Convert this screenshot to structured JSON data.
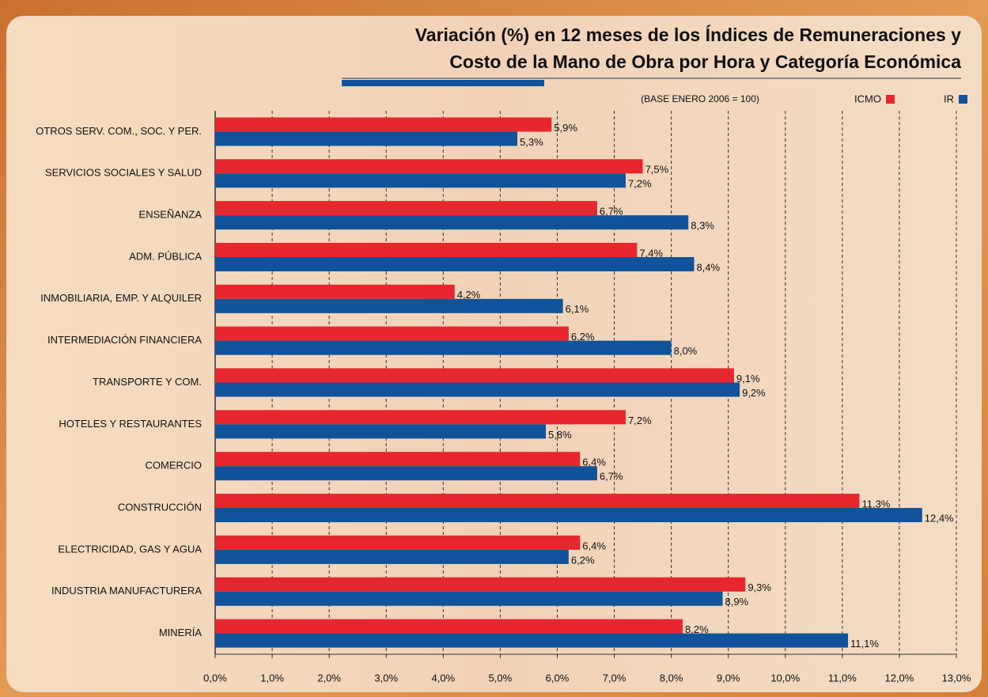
{
  "chart_data": {
    "type": "barh",
    "title": [
      "Variación (%) en 12 meses de los Índices de Remuneraciones y",
      "Costo de la Mano de Obra por Hora y Categoría Económica"
    ],
    "subtitle": "(BASE ENERO 2006 = 100)",
    "categories": [
      "OTROS SERV. COM., SOC. Y PER.",
      "SERVICIOS SOCIALES Y SALUD",
      "ENSEÑANZA",
      "ADM. PÚBLICA",
      "INMOBILIARIA, EMP. Y ALQUILER",
      "INTERMEDIACIÓN FINANCIERA",
      "TRANSPORTE Y COM.",
      "HOTELES Y RESTAURANTES",
      "COMERCIO",
      "CONSTRUCCIÓN",
      "ELECTRICIDAD, GAS Y AGUA",
      "INDUSTRIA MANUFACTURERA",
      "MINERÍA"
    ],
    "series": [
      {
        "name": "ICMO",
        "color": "#e8262e",
        "values": [
          5.9,
          7.5,
          6.7,
          7.4,
          4.2,
          6.2,
          9.1,
          7.2,
          6.4,
          11.3,
          6.4,
          9.3,
          8.2
        ],
        "value_labels": [
          "5,9%",
          "7,5%",
          "6,7%",
          "7,4%",
          "4,2%",
          "6,2%",
          "9,1%",
          "7,2%",
          "6,4%",
          "11,3%",
          "6,4%",
          "9,3%",
          "8,2%"
        ]
      },
      {
        "name": "IR",
        "color": "#10539a",
        "values": [
          5.3,
          7.2,
          8.3,
          8.4,
          6.1,
          8.0,
          9.2,
          5.8,
          6.7,
          12.4,
          6.2,
          8.9,
          11.1
        ],
        "value_labels": [
          "5,3%",
          "7,2%",
          "8,3%",
          "8,4%",
          "6,1%",
          "8,0%",
          "9,2%",
          "5,8%",
          "6,7%",
          "12,4%",
          "6,2%",
          "8,9%",
          "11,1%"
        ]
      }
    ],
    "xlim": [
      0,
      13
    ],
    "xticks": [
      {
        "value": 0,
        "label": "0,0%"
      },
      {
        "value": 1,
        "label": "1,0%"
      },
      {
        "value": 2,
        "label": "2,0%"
      },
      {
        "value": 3,
        "label": "3,0%"
      },
      {
        "value": 4,
        "label": "4,0%"
      },
      {
        "value": 5,
        "label": "5,0%"
      },
      {
        "value": 6,
        "label": "6,0%"
      },
      {
        "value": 7,
        "label": "7,0%"
      },
      {
        "value": 8,
        "label": "8,0%"
      },
      {
        "value": 9,
        "label": "9,0%"
      },
      {
        "value": 10,
        "label": "10,0%"
      },
      {
        "value": 11,
        "label": "11,0%"
      },
      {
        "value": 12,
        "label": "12,0%"
      },
      {
        "value": 13,
        "label": "13,0%"
      }
    ],
    "grid": true,
    "legend": "upper right"
  }
}
